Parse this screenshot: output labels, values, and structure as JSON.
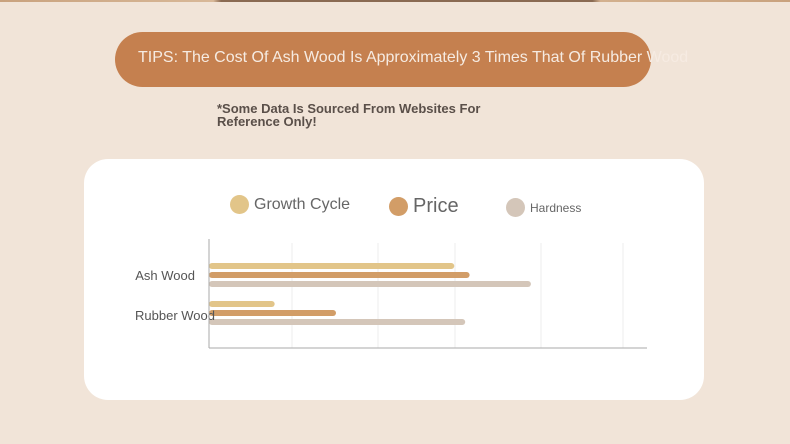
{
  "tips": {
    "text": "TIPS: The Cost Of Ash Wood Is Approximately 3 Times That Of Rubber Wood"
  },
  "note": {
    "text": "*Some Data Is Sourced From Websites For Reference Only!"
  },
  "colors": {
    "background": "#f1e4d8",
    "tips_pill": "#c5804f",
    "growth_cycle": "#e2c589",
    "price": "#d29d67",
    "hardness": "#d4c6b9"
  },
  "chart_data": {
    "type": "bar",
    "orientation": "horizontal",
    "categories": [
      "Ash Wood",
      "Rubber Wood"
    ],
    "series": [
      {
        "name": "Growth Cycle",
        "color": "#e2c589",
        "values": [
          56,
          15
        ]
      },
      {
        "name": "Price",
        "color": "#d29d67",
        "values": [
          59.5,
          29
        ]
      },
      {
        "name": "Hardness",
        "color": "#d4c6b9",
        "values": [
          73.5,
          58.5
        ]
      }
    ],
    "xlim": [
      0,
      100
    ],
    "grid": true,
    "legend": "top"
  }
}
